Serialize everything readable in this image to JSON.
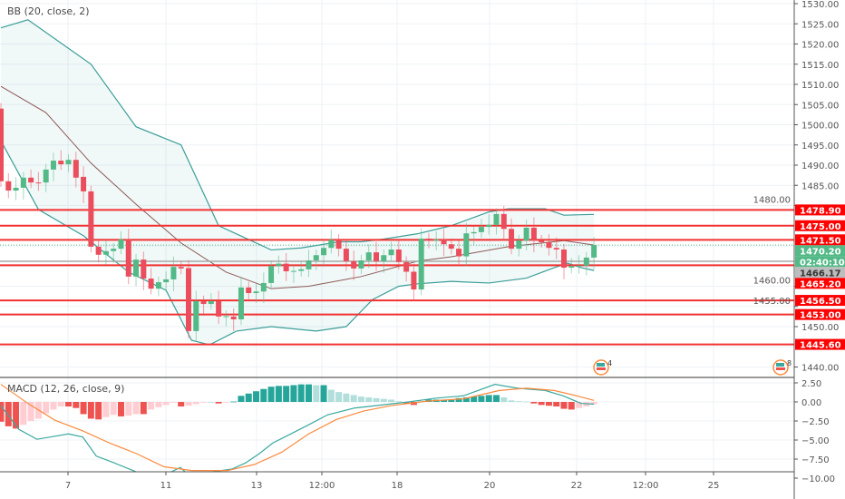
{
  "legend": {
    "bb": "BB (20, close, 2)",
    "macd": "MACD (12, 26, close, 9)"
  },
  "colors": {
    "up": "#53b987",
    "down": "#eb4d5c",
    "band": "#3a9e98",
    "basis": "#8b5a57",
    "hline": "#f23030",
    "macd": "#3aa89f",
    "signal": "#fb8a3c",
    "hist_up": "#26a69a",
    "hist_up_light": "#b2dfdb",
    "hist_down": "#ef5350",
    "hist_down_light": "#ffcdd2"
  },
  "price_axis": {
    "ticks": [
      "1530.00",
      "1525.00",
      "1520.00",
      "1515.00",
      "1510.00",
      "1505.00",
      "1500.00",
      "1495.00",
      "1490.00",
      "1485.00",
      "1480.00",
      "1460.00",
      "1455.00",
      "1450.00",
      "1440.00"
    ]
  },
  "macd_axis": {
    "ticks": [
      "2.50",
      "0.00",
      "−2.50",
      "−5.00",
      "−7.50",
      "−10.00"
    ]
  },
  "time_axis": {
    "labels": [
      "7",
      "11",
      "13",
      "12:00",
      "18",
      "20",
      "22",
      "12:00",
      "25"
    ]
  },
  "levels": [
    {
      "label": "1478.90",
      "value": 1478.9
    },
    {
      "label": "1475.00",
      "value": 1475.0
    },
    {
      "label": "1471.50",
      "value": 1471.5
    },
    {
      "label": "1465.20",
      "value": 1465.2
    },
    {
      "label": "1456.50",
      "value": 1456.5
    },
    {
      "label": "1453.00",
      "value": 1453.0
    },
    {
      "label": "1445.60",
      "value": 1445.6
    }
  ],
  "last_price": {
    "label": "1470.20",
    "value": 1470.2,
    "countdown": "02:40:10"
  },
  "crosshair_price": {
    "label": "1466.17",
    "value": 1466.17
  },
  "events": [
    {
      "count": "4"
    },
    {
      "count": "8"
    }
  ],
  "chart_data": {
    "type": "candlestick",
    "price_range": [
      1438,
      1531
    ],
    "macd_range": [
      -10.5,
      3.3
    ],
    "candles_oc": [
      [
        1504,
        1486
      ],
      [
        1486,
        1483.7
      ],
      [
        1483.7,
        1484.4
      ],
      [
        1484.4,
        1486.9
      ],
      [
        1486.9,
        1485.7
      ],
      [
        1485.7,
        1485.5
      ],
      [
        1485.7,
        1488.9
      ],
      [
        1488.9,
        1491.1
      ],
      [
        1491.1,
        1490.2
      ],
      [
        1490.2,
        1491.3
      ],
      [
        1491.3,
        1486.9
      ],
      [
        1487.1,
        1483.5
      ],
      [
        1483.5,
        1469.8
      ],
      [
        1469.8,
        1467.8
      ],
      [
        1467.8,
        1468.7
      ],
      [
        1468.7,
        1469.3
      ],
      [
        1469.3,
        1471.6
      ],
      [
        1471.6,
        1462.4
      ],
      [
        1462.4,
        1466.6
      ],
      [
        1466.6,
        1461.9
      ],
      [
        1461.9,
        1459.4
      ],
      [
        1459.4,
        1461
      ],
      [
        1461,
        1461.7
      ],
      [
        1461.7,
        1464.8
      ],
      [
        1464.8,
        1464.4
      ],
      [
        1464.5,
        1448.9
      ],
      [
        1448.9,
        1456.3
      ],
      [
        1456.3,
        1455.6
      ],
      [
        1455.6,
        1456.3
      ],
      [
        1456.3,
        1452.5
      ],
      [
        1452.5,
        1452.6
      ],
      [
        1452.5,
        1451.8
      ],
      [
        1451.8,
        1459.7
      ],
      [
        1459.7,
        1458.3
      ],
      [
        1458.3,
        1458.7
      ],
      [
        1458.7,
        1460.8
      ],
      [
        1460.8,
        1465
      ],
      [
        1465,
        1465.6
      ],
      [
        1465.6,
        1463.7
      ],
      [
        1463.7,
        1463.8
      ],
      [
        1463.8,
        1464.2
      ],
      [
        1464.2,
        1466.4
      ],
      [
        1466.4,
        1467.7
      ],
      [
        1467.7,
        1469.5
      ],
      [
        1469.5,
        1471.5
      ],
      [
        1471.5,
        1469.3
      ],
      [
        1469.3,
        1466.2
      ],
      [
        1466.2,
        1464.4
      ],
      [
        1464.4,
        1466.4
      ],
      [
        1466.4,
        1468.4
      ],
      [
        1468.4,
        1466.2
      ],
      [
        1466.2,
        1467.7
      ],
      [
        1467.7,
        1469.1
      ],
      [
        1469.1,
        1466
      ],
      [
        1466,
        1463.6
      ],
      [
        1463.6,
        1459.2
      ],
      [
        1459.2,
        1471.8
      ],
      [
        1471.8,
        1471.3
      ],
      [
        1471.3,
        1471.6
      ],
      [
        1471.6,
        1470.4
      ],
      [
        1470.4,
        1469.3
      ],
      [
        1469.3,
        1467.4
      ],
      [
        1467.4,
        1473.1
      ],
      [
        1473.1,
        1473.4
      ],
      [
        1473.4,
        1474.7
      ],
      [
        1474.7,
        1475.2
      ],
      [
        1475.2,
        1477.9
      ],
      [
        1477.9,
        1474.2
      ],
      [
        1474.2,
        1469.3
      ],
      [
        1469.3,
        1471.3
      ],
      [
        1471.3,
        1474.5
      ],
      [
        1474.5,
        1471.3
      ],
      [
        1471.3,
        1470.9
      ],
      [
        1470.9,
        1469.5
      ],
      [
        1469.5,
        1469.1
      ],
      [
        1469.1,
        1464.6
      ],
      [
        1464.6,
        1465
      ],
      [
        1465,
        1465.1
      ],
      [
        1465.1,
        1467.1
      ],
      [
        1467.1,
        1470.2
      ]
    ],
    "bb_upper": [
      [
        0,
        1524
      ],
      [
        3.6,
        1526
      ],
      [
        12,
        1515
      ],
      [
        18,
        1499.5
      ],
      [
        24,
        1495
      ],
      [
        29,
        1475
      ],
      [
        36,
        1469
      ],
      [
        40,
        1469.5
      ],
      [
        45,
        1471
      ],
      [
        48,
        1471
      ],
      [
        51,
        1471.7
      ],
      [
        55.5,
        1473
      ],
      [
        60,
        1475
      ],
      [
        65,
        1478.4
      ],
      [
        67.6,
        1479.2
      ],
      [
        72.5,
        1479.2
      ],
      [
        75,
        1477.6
      ],
      [
        79,
        1477.8
      ]
    ],
    "bb_basis": [
      [
        0,
        1509.5
      ],
      [
        6,
        1503
      ],
      [
        12,
        1490.5
      ],
      [
        18,
        1480.3
      ],
      [
        24,
        1470.7
      ],
      [
        30,
        1463.5
      ],
      [
        36,
        1459.4
      ],
      [
        41,
        1460
      ],
      [
        48,
        1462.4
      ],
      [
        55.5,
        1466.2
      ],
      [
        60,
        1467.3
      ],
      [
        67.6,
        1469.8
      ],
      [
        75,
        1471.3
      ],
      [
        79,
        1470.2
      ]
    ],
    "bb_lower": [
      [
        0,
        1496
      ],
      [
        5,
        1479
      ],
      [
        11,
        1472.5
      ],
      [
        17,
        1463.5
      ],
      [
        22,
        1459
      ],
      [
        25.4,
        1446.6
      ],
      [
        27.8,
        1445.5
      ],
      [
        31.4,
        1448.9
      ],
      [
        36,
        1450
      ],
      [
        42,
        1448.9
      ],
      [
        46,
        1450
      ],
      [
        49.5,
        1456.7
      ],
      [
        53,
        1460
      ],
      [
        55.5,
        1460.6
      ],
      [
        60,
        1461.2
      ],
      [
        65,
        1460.8
      ],
      [
        70,
        1462
      ],
      [
        73.7,
        1464.6
      ],
      [
        75.5,
        1465.7
      ],
      [
        77.3,
        1464.6
      ],
      [
        79,
        1463.9
      ]
    ],
    "macd_hist": [
      -2.6,
      -3.2,
      -3.5,
      -3.0,
      -2.5,
      -2.2,
      -1.5,
      -1.0,
      -0.6,
      -0.6,
      -0.8,
      -1.6,
      -2.2,
      -2.3,
      -2.0,
      -1.7,
      -1.9,
      -1.8,
      -1.6,
      -1.6,
      -1.0,
      -0.7,
      -0.4,
      -0.1,
      -0.6,
      -0.5,
      -0.3,
      -0.1,
      0.0,
      -0.2,
      -0.05,
      0.05,
      0.8,
      1.1,
      1.4,
      1.7,
      2.0,
      2.1,
      2.1,
      2.2,
      2.3,
      2.3,
      2.2,
      2.2,
      1.6,
      1.3,
      1.1,
      0.9,
      0.7,
      0.6,
      0.5,
      0.4,
      0.3,
      0.1,
      -0.2,
      -0.4,
      0.1,
      0.3,
      0.3,
      0.3,
      0.3,
      0.5,
      0.6,
      0.7,
      0.8,
      0.9,
      0.9,
      0.6,
      0.2,
      0.1,
      0.05,
      -0.2,
      -0.4,
      -0.5,
      -0.6,
      -0.9,
      -1.0,
      -0.8,
      -0.6,
      -0.3
    ],
    "macd_line": [
      [
        0,
        -0.5
      ],
      [
        2.4,
        -3.6
      ],
      [
        4.8,
        -4.9
      ],
      [
        7.2,
        -4.5
      ],
      [
        9,
        -4.2
      ],
      [
        10.9,
        -4.6
      ],
      [
        12.7,
        -7.1
      ],
      [
        15.1,
        -8
      ],
      [
        18.1,
        -9.2
      ],
      [
        19.9,
        -9.6
      ],
      [
        22,
        -9.5
      ],
      [
        23.9,
        -8.6
      ],
      [
        24.8,
        -9.4
      ],
      [
        27.2,
        -9.3
      ],
      [
        30.8,
        -8.8
      ],
      [
        32.6,
        -8
      ],
      [
        34.4,
        -6.8
      ],
      [
        36.2,
        -5.4
      ],
      [
        38.6,
        -4.2
      ],
      [
        41,
        -3
      ],
      [
        43.5,
        -1.7
      ],
      [
        47.1,
        -0.8
      ],
      [
        50.7,
        -0.4
      ],
      [
        54.3,
        0
      ],
      [
        58,
        0.5
      ],
      [
        61.6,
        0.8
      ],
      [
        65.8,
        2.3
      ],
      [
        68.8,
        1.8
      ],
      [
        72.5,
        1.5
      ],
      [
        74.9,
        0.8
      ],
      [
        77.3,
        -0.2
      ],
      [
        79,
        -0.3
      ]
    ],
    "signal_line": [
      [
        0,
        2.3
      ],
      [
        3.6,
        -0.2
      ],
      [
        7.2,
        -2.4
      ],
      [
        10.9,
        -3.8
      ],
      [
        14.5,
        -5.4
      ],
      [
        18.1,
        -6.8
      ],
      [
        21.7,
        -8.5
      ],
      [
        25.4,
        -9
      ],
      [
        30.2,
        -9
      ],
      [
        33.8,
        -8.2
      ],
      [
        37.4,
        -6.6
      ],
      [
        41,
        -4.2
      ],
      [
        44.7,
        -2.3
      ],
      [
        48.3,
        -1.2
      ],
      [
        51.9,
        -0.5
      ],
      [
        56.8,
        0.1
      ],
      [
        61.6,
        0.4
      ],
      [
        66.4,
        1.5
      ],
      [
        70,
        1.8
      ],
      [
        73.7,
        1.5
      ],
      [
        76.7,
        0.8
      ],
      [
        79,
        0.2
      ]
    ]
  }
}
